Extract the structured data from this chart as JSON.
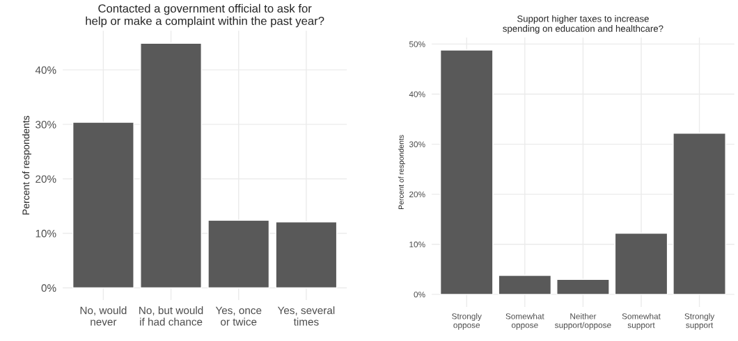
{
  "chart_data": [
    {
      "type": "bar",
      "title": "Contacted a government official to ask for\nhelp or make a complaint within the past year?",
      "ylabel": "Percent of respondents",
      "categories": [
        "No, would\nnever",
        "No, but would\nif had chance",
        "Yes, once\nor twice",
        "Yes, several\ntimes"
      ],
      "values": [
        30.4,
        44.9,
        12.4,
        12.1
      ],
      "color": "#595959",
      "ylim": [
        -2.25,
        47.2
      ],
      "yticks": [
        {
          "value": 0,
          "label": "0%"
        },
        {
          "value": 10,
          "label": "10%"
        },
        {
          "value": 20,
          "label": "20%"
        },
        {
          "value": 30,
          "label": "30%"
        },
        {
          "value": 40,
          "label": "40%"
        }
      ],
      "grid": true
    },
    {
      "type": "bar",
      "title": "Support higher taxes to increase\nspending on education and healthcare?",
      "ylabel": "Percent of respondents",
      "categories": [
        "Strongly\noppose",
        "Somewhat\noppose",
        "Neither\nsupport/oppose",
        "Somewhat\nsupport",
        "Strongly\nsupport"
      ],
      "values": [
        48.8,
        3.8,
        3.0,
        12.2,
        32.2
      ],
      "color": "#595959",
      "ylim": [
        -2.5,
        51.3
      ],
      "yticks": [
        {
          "value": 0,
          "label": "0%"
        },
        {
          "value": 10,
          "label": "10%"
        },
        {
          "value": 20,
          "label": "20%"
        },
        {
          "value": 30,
          "label": "30%"
        },
        {
          "value": 40,
          "label": "40%"
        },
        {
          "value": 50,
          "label": "50%"
        }
      ],
      "grid": true
    }
  ]
}
